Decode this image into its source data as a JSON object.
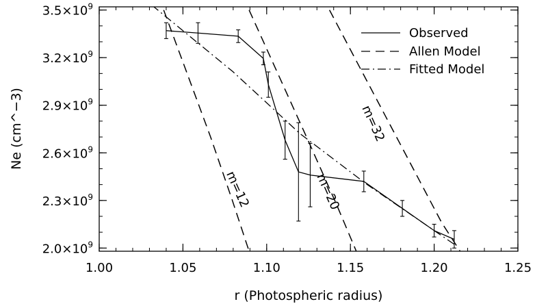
{
  "chart_data": {
    "type": "line",
    "title": "",
    "xlabel": "r (Photospheric radius)",
    "ylabel": "Ne (cm^−3)",
    "xlim": [
      1.0,
      1.25
    ],
    "ylim": [
      1980000000.0,
      3520000000.0
    ],
    "x_ticks": [
      1.0,
      1.05,
      1.1,
      1.15,
      1.2,
      1.25
    ],
    "x_tick_labels": [
      "1.00",
      "1.05",
      "1.10",
      "1.15",
      "1.20",
      "1.25"
    ],
    "y_ticks": [
      2000000000.0,
      2300000000.0,
      2600000000.0,
      2900000000.0,
      3200000000.0,
      3500000000.0
    ],
    "y_tick_mantissas": [
      "2.0",
      "2.3",
      "2.6",
      "2.9",
      "3.2",
      "3.5"
    ],
    "y_tick_times": "×10",
    "y_tick_exponent": "9",
    "grid": false,
    "legend_position": "top-right",
    "series": [
      {
        "name": "Observed",
        "style": "solid",
        "x": [
          1.04,
          1.059,
          1.083,
          1.098,
          1.101,
          1.111,
          1.119,
          1.126,
          1.158,
          1.181,
          1.2,
          1.212
        ],
        "y": [
          3370000000.0,
          3355000000.0,
          3335000000.0,
          3195000000.0,
          3030000000.0,
          2680000000.0,
          2480000000.0,
          2460000000.0,
          2420000000.0,
          2250000000.0,
          2110000000.0,
          2055000000.0
        ],
        "yerr": [
          50000000.0,
          65000000.0,
          40000000.0,
          40000000.0,
          80000000.0,
          120000000.0,
          310000000.0,
          200000000.0,
          65000000.0,
          50000000.0,
          40000000.0,
          55000000.0
        ]
      },
      {
        "name": "Allen Model",
        "style": "dashed",
        "curves": [
          {
            "label": "m=12",
            "x": [
              1.0385,
              1.0525,
              1.0665,
              1.0795,
              1.0895
            ],
            "y": [
              3500000000.0,
              3100000000.0,
              2700000000.0,
              2300000000.0,
              1980000000.0
            ]
          },
          {
            "label": "m=20",
            "x": [
              1.0895,
              1.1075,
              1.1255,
              1.1415,
              1.1535
            ],
            "y": [
              3500000000.0,
              3080000000.0,
              2660000000.0,
              2280000000.0,
              1980000000.0
            ]
          },
          {
            "label": "m=32",
            "x": [
              1.1375,
              1.1615,
              1.1855,
              1.2045,
              1.2155
            ],
            "y": [
              3500000000.0,
              3020000000.0,
              2540000000.0,
              2160000000.0,
              1980000000.0
            ]
          }
        ]
      },
      {
        "name": "Fitted Model",
        "style": "dash-dot",
        "x": [
          1.0315,
          1.08,
          1.12,
          1.16,
          1.2125
        ],
        "y": [
          3530000000.0,
          3110000000.0,
          2720000000.0,
          2400000000.0,
          2020000000.0
        ]
      }
    ],
    "annotations": [
      "m=12",
      "m=20",
      "m=32"
    ]
  }
}
